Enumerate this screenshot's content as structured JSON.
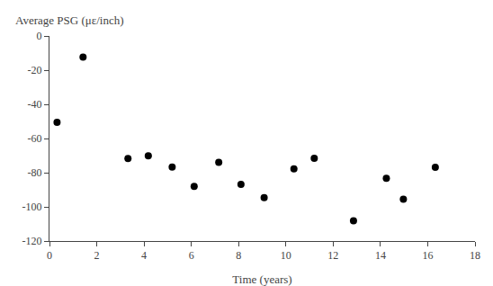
{
  "chart_data": {
    "type": "scatter",
    "x": [
      0.32,
      1.42,
      3.32,
      4.18,
      5.19,
      6.12,
      7.16,
      8.1,
      9.08,
      10.34,
      11.2,
      12.86,
      14.25,
      14.97,
      16.32
    ],
    "y": [
      -50.48,
      -12.37,
      -71.73,
      -70.14,
      -76.74,
      -87.97,
      -73.92,
      -86.88,
      -94.54,
      -77.75,
      -71.57,
      -108.21,
      -83.27,
      -95.53,
      -76.88
    ],
    "xlabel": "Time (years)",
    "ylabel": "Average PSG (με/inch)",
    "xlim": [
      0,
      18
    ],
    "ylim": [
      -120,
      0
    ],
    "xticks": [
      0,
      2,
      4,
      6,
      8,
      10,
      12,
      14,
      16,
      18
    ],
    "yticks": [
      0,
      -20,
      -40,
      -60,
      -80,
      -100,
      -120
    ],
    "color": "black",
    "grid": false
  }
}
